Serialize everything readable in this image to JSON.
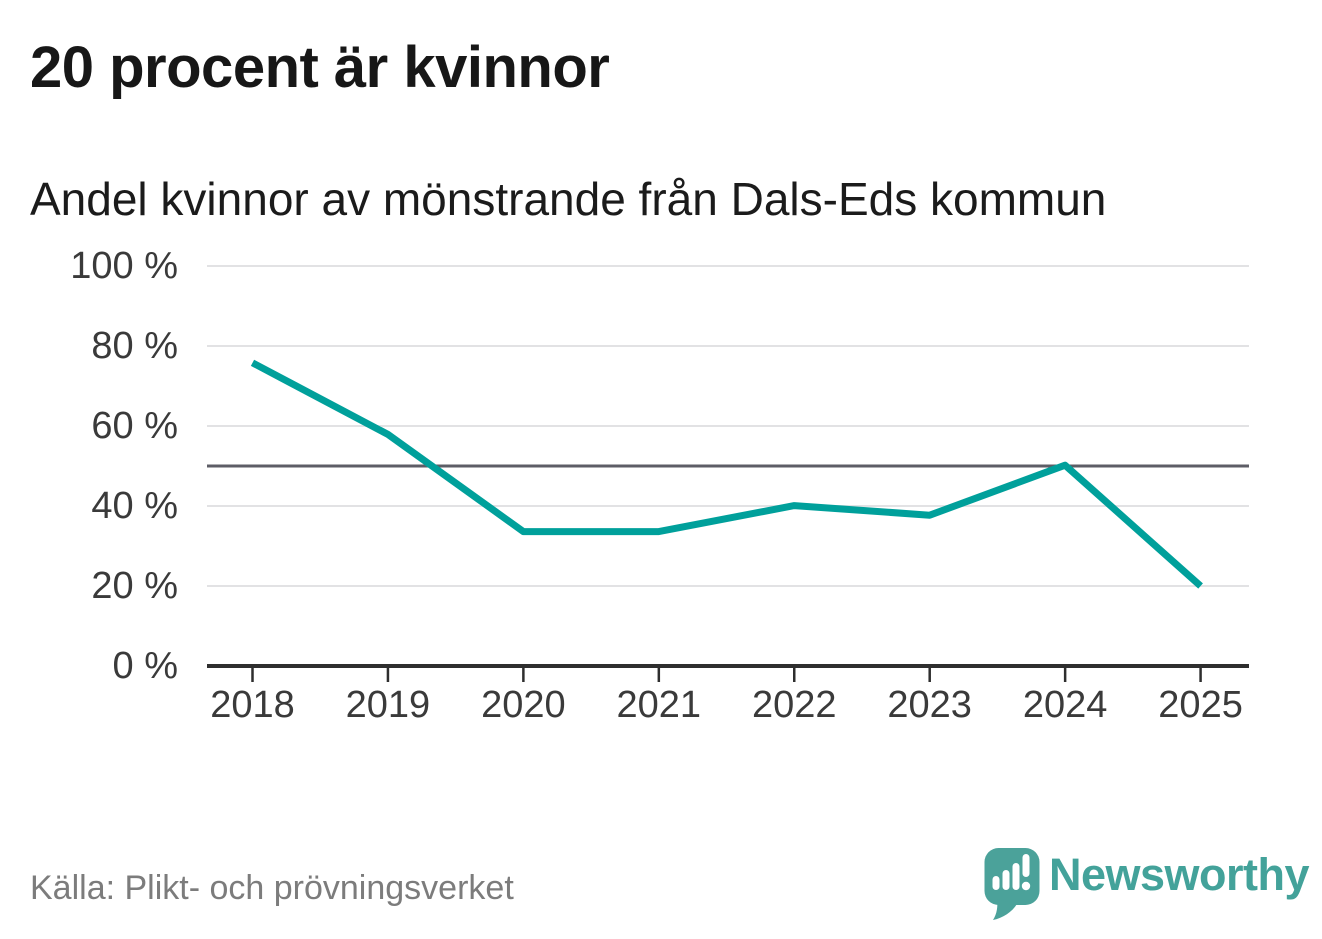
{
  "title": "20 procent är kvinnor",
  "subtitle": "Andel kvinnor av mönstrande från Dals-Eds kommun",
  "source": "Källa: Plikt- och prövningsverket",
  "brand": {
    "name": "Newsworthy",
    "icon": "newsworthy-speech-bubble-bar-chart-icon"
  },
  "colors": {
    "line": "#00a09b",
    "grid": "#e2e2e4",
    "reference_line": "#5d5d66",
    "axis": "#2e2e2e",
    "title_text": "#171717",
    "tick_label": "#3a3a3a",
    "source_text": "#7c7c7c",
    "brand_teal": "#43a29a",
    "logo_bubble": "#4ba29a"
  },
  "chart_data": {
    "type": "line",
    "title": "20 procent är kvinnor",
    "subtitle": "Andel kvinnor av mönstrande från Dals-Eds kommun",
    "x": [
      2018,
      2019,
      2020,
      2021,
      2022,
      2023,
      2024,
      2025
    ],
    "series": [
      {
        "name": "Andel kvinnor av mönstrande",
        "values": [
          75.8,
          57.9,
          33.6,
          33.6,
          40.1,
          37.7,
          50.2,
          20.0
        ]
      }
    ],
    "xlabel": "",
    "ylabel": "",
    "ylim": [
      0,
      100
    ],
    "ytick_values": [
      100,
      80,
      60,
      40,
      20,
      0
    ],
    "ytick_labels": [
      "100 %",
      "80 %",
      "60 %",
      "40 %",
      "20 %",
      "0 %"
    ],
    "xtick_labels": [
      "2018",
      "2019",
      "2020",
      "2021",
      "2022",
      "2023",
      "2024",
      "2025"
    ],
    "grid": "horizontal",
    "reference_line_y": 50,
    "legend": "none",
    "line_width": 7
  }
}
